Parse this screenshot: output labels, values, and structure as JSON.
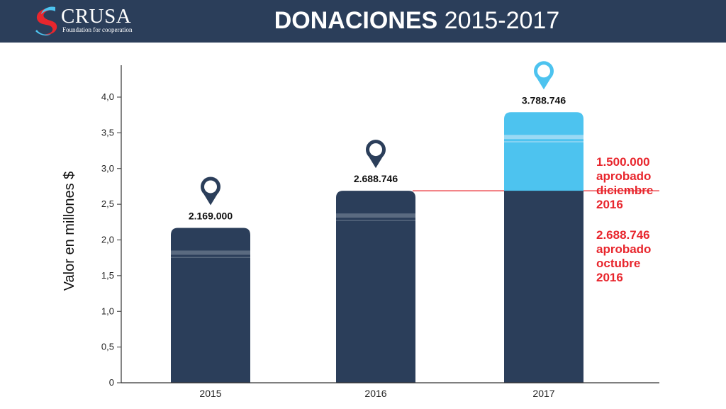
{
  "header": {
    "logo_text": "CRUSA",
    "logo_tagline": "Foundation for cooperation",
    "title_bold": "DONACIONES",
    "title_light": "2015-2017"
  },
  "colors": {
    "header_bg": "#2b3e5a",
    "bar_dark": "#2b3e5a",
    "bar_light": "#4dc3ef",
    "annotation": "#e8262d"
  },
  "chart_data": {
    "type": "bar",
    "title": "DONACIONES 2015-2017",
    "ylabel": "Valor en millones  $",
    "xlabel": "",
    "categories": [
      "2015",
      "2016",
      "2017"
    ],
    "ylim": [
      0,
      4.5
    ],
    "yticks": [
      0,
      0.5,
      1.0,
      1.5,
      2.0,
      2.5,
      3.0,
      3.5,
      4.0
    ],
    "ytick_labels": [
      "0",
      "0,5",
      "1,0",
      "1,5",
      "2,0",
      "2,5",
      "3,0",
      "3,5",
      "4,0"
    ],
    "series": [
      {
        "name": "2.688.746 aprobado octubre 2016",
        "color": "#2b3e5a",
        "values": [
          2.169,
          2.688746,
          2.688746
        ]
      },
      {
        "name": "1.500.000 aprobado diciembre 2016",
        "color": "#4dc3ef",
        "values": [
          0,
          0,
          1.1
        ]
      }
    ],
    "totals": [
      2.169,
      2.688746,
      3.788746
    ],
    "value_labels": [
      "2.169.000",
      "2.688.746",
      "3.788.746"
    ],
    "reference_line": 2.688746,
    "annotations": [
      {
        "lines": [
          "1.500.000",
          "aprobado",
          "diciembre",
          "2016"
        ]
      },
      {
        "lines": [
          "2.688.746",
          "aprobado",
          "octubre",
          "2016"
        ]
      }
    ],
    "grid": false,
    "legend": "none"
  }
}
